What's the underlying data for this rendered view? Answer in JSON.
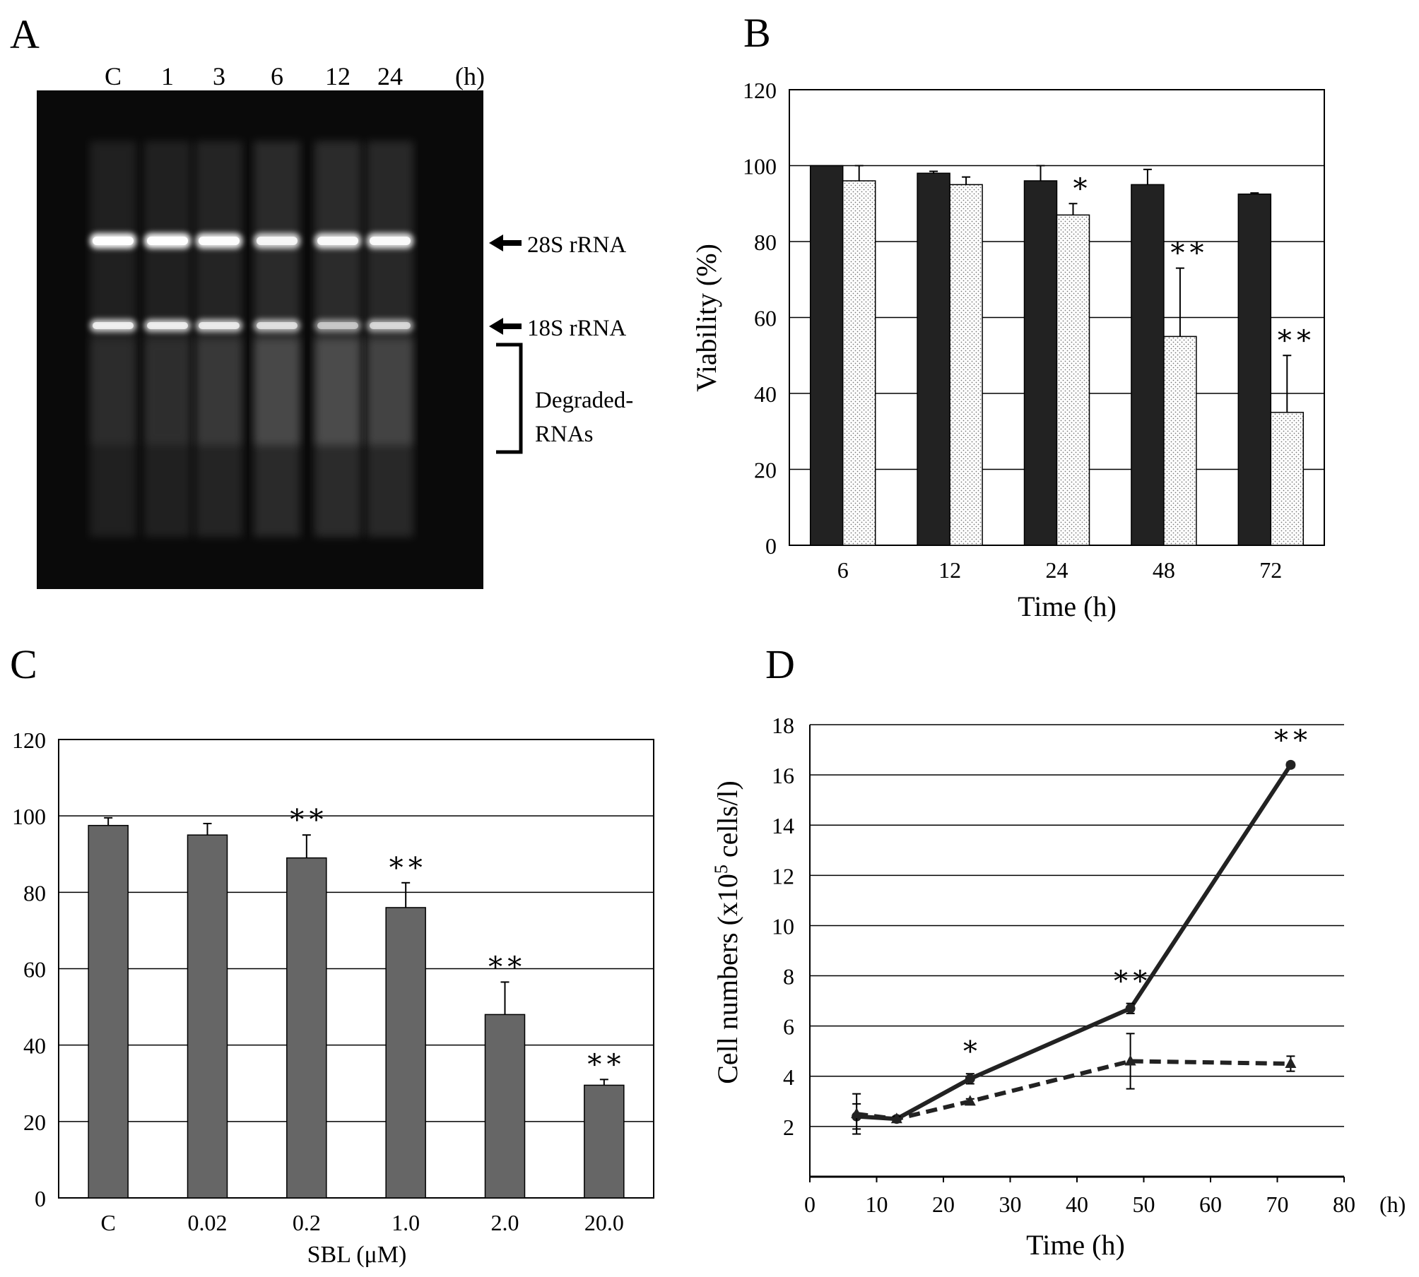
{
  "panels": {
    "A": {
      "letter": "A",
      "lane_labels": [
        "C",
        "1",
        "3",
        "6",
        "12",
        "24"
      ],
      "unit": "(h)",
      "arrow_28s": "28S rRNA",
      "arrow_18s": "18S rRNA",
      "bracket_line1": "Degraded-",
      "bracket_line2": "RNAs"
    },
    "B": {
      "letter": "B"
    },
    "C": {
      "letter": "C"
    },
    "D": {
      "letter": "D",
      "x_unit": "(h)"
    }
  },
  "colors": {
    "dark_bar": "#222222",
    "gray_bar": "#666666",
    "dotted_bar": "#e8e8e8",
    "line": "#222222"
  },
  "chart_data": [
    {
      "panel": "B",
      "type": "bar",
      "categories": [
        "6",
        "12",
        "24",
        "48",
        "72"
      ],
      "series": [
        {
          "values": [
            100,
            98,
            96,
            95,
            92.5
          ],
          "errors": [
            0,
            0.5,
            4,
            4,
            0.3
          ],
          "style": "solid-dark"
        },
        {
          "values": [
            96,
            95,
            87,
            55,
            35
          ],
          "errors": [
            4,
            2,
            3,
            18,
            15
          ],
          "style": "dotted-light"
        }
      ],
      "significance": [
        "",
        "",
        "*",
        "**",
        "**"
      ],
      "xlabel": "Time (h)",
      "ylabel": "Viability (%)",
      "ylim": [
        0,
        120
      ],
      "yticks": [
        0,
        20,
        40,
        60,
        80,
        100,
        120
      ],
      "grid": true
    },
    {
      "panel": "C",
      "type": "bar",
      "categories": [
        "C",
        "0.02",
        "0.2",
        "1.0",
        "2.0",
        "20.0"
      ],
      "series": [
        {
          "values": [
            97.5,
            95,
            89,
            76,
            48,
            29.5
          ],
          "errors": [
            2,
            3,
            6,
            6.5,
            8.5,
            1.5
          ],
          "style": "solid-gray"
        }
      ],
      "significance": [
        "",
        "",
        "**",
        "**",
        "**",
        "**"
      ],
      "xlabel": "SBL (μM)",
      "ylabel": "",
      "ylim": [
        0,
        120
      ],
      "yticks": [
        0,
        20,
        40,
        60,
        80,
        100,
        120
      ],
      "grid": true
    },
    {
      "panel": "D",
      "type": "line",
      "series": [
        {
          "x": [
            7,
            13,
            24,
            48,
            72
          ],
          "y": [
            2.4,
            2.3,
            3.9,
            6.7,
            16.4
          ],
          "errors": [
            0.5,
            0.1,
            0.2,
            0.2,
            0.1
          ],
          "style": "solid"
        },
        {
          "x": [
            7,
            13,
            24,
            48,
            72
          ],
          "y": [
            2.5,
            2.3,
            3.0,
            4.6,
            4.5
          ],
          "errors": [
            0.8,
            0.1,
            0.1,
            1.1,
            0.3
          ],
          "style": "dashed"
        }
      ],
      "annotations": [
        {
          "x": 24,
          "text": "*"
        },
        {
          "x": 48,
          "text": "**"
        },
        {
          "x": 72,
          "text": "**"
        }
      ],
      "xlabel": "Time (h)",
      "ylabel_prefix": "Cell numbers (x10",
      "ylabel_sup": "5",
      "ylabel_suffix": " cells/l)",
      "xlim": [
        0,
        80
      ],
      "xticks": [
        0,
        10,
        20,
        30,
        40,
        50,
        60,
        70,
        80
      ],
      "ylim": [
        0,
        18
      ],
      "yticks": [
        2,
        4,
        6,
        8,
        10,
        12,
        14,
        16,
        18
      ],
      "grid": true
    }
  ]
}
